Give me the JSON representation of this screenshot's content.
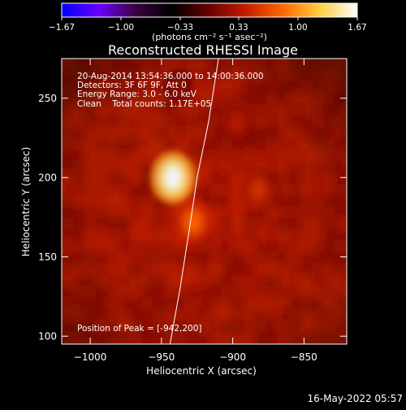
{
  "chart_data": {
    "type": "heatmap",
    "title": "Reconstructed RHESSI Image",
    "xlabel": "Heliocentric X (arcsec)",
    "ylabel": "Heliocentric Y (arcsec)",
    "xlim": [
      -1020,
      -820
    ],
    "ylim": [
      95,
      275
    ],
    "x_ticks": [
      {
        "value": -1000,
        "label": "−1000"
      },
      {
        "value": -950,
        "label": "−950"
      },
      {
        "value": -900,
        "label": "−900"
      },
      {
        "value": -850,
        "label": "−850"
      }
    ],
    "y_ticks": [
      {
        "value": 250,
        "label": "250"
      },
      {
        "value": 200,
        "label": "200"
      },
      {
        "value": 150,
        "label": "150"
      },
      {
        "value": 100,
        "label": "100"
      }
    ],
    "colorbar": {
      "range": [
        -1.67,
        1.67
      ],
      "ticks": [
        {
          "value": -1.67,
          "label": "−1.67"
        },
        {
          "value": -1.0,
          "label": "−1.00"
        },
        {
          "value": -0.33,
          "label": "−0.33"
        },
        {
          "value": 0.33,
          "label": "0.33"
        },
        {
          "value": 1.0,
          "label": "1.00"
        },
        {
          "value": 1.67,
          "label": "1.67"
        }
      ],
      "units_label": "(photons cm⁻² s⁻¹ asec⁻²)",
      "colors": [
        "#0000ff",
        "#6a00ff",
        "#3a0040",
        "#000000",
        "#6a0000",
        "#c81c00",
        "#ff6a00",
        "#ffd040",
        "#ffffff"
      ]
    },
    "info_lines": [
      "20-Aug-2014 13:54:36.000 to 14:00:36.000",
      "Detectors: 3F 6F 9F, Att 0",
      "Energy Range: 3.0 - 6.0 keV",
      "Clean    Total counts: 1.17E+05"
    ],
    "peak_label": "Position of Peak = [-942,200]",
    "peak": {
      "x": -942,
      "y": 200
    },
    "sources": [
      {
        "x": -942,
        "y": 200,
        "intensity": 1.67
      },
      {
        "x": -928,
        "y": 172,
        "intensity": 1.05
      },
      {
        "x": -882,
        "y": 192,
        "intensity": 0.85
      },
      {
        "x": -897,
        "y": 235,
        "intensity": 0.75
      },
      {
        "x": -938,
        "y": 258,
        "intensity": 0.55
      }
    ],
    "limb": [
      {
        "x": -944,
        "y": 95
      },
      {
        "x": -937,
        "y": 130
      },
      {
        "x": -930,
        "y": 170
      },
      {
        "x": -925,
        "y": 200
      },
      {
        "x": -917,
        "y": 235
      },
      {
        "x": -910,
        "y": 275
      }
    ],
    "background_level": 0.65
  },
  "footer": {
    "date_stamp": "16-May-2022 05:57"
  }
}
